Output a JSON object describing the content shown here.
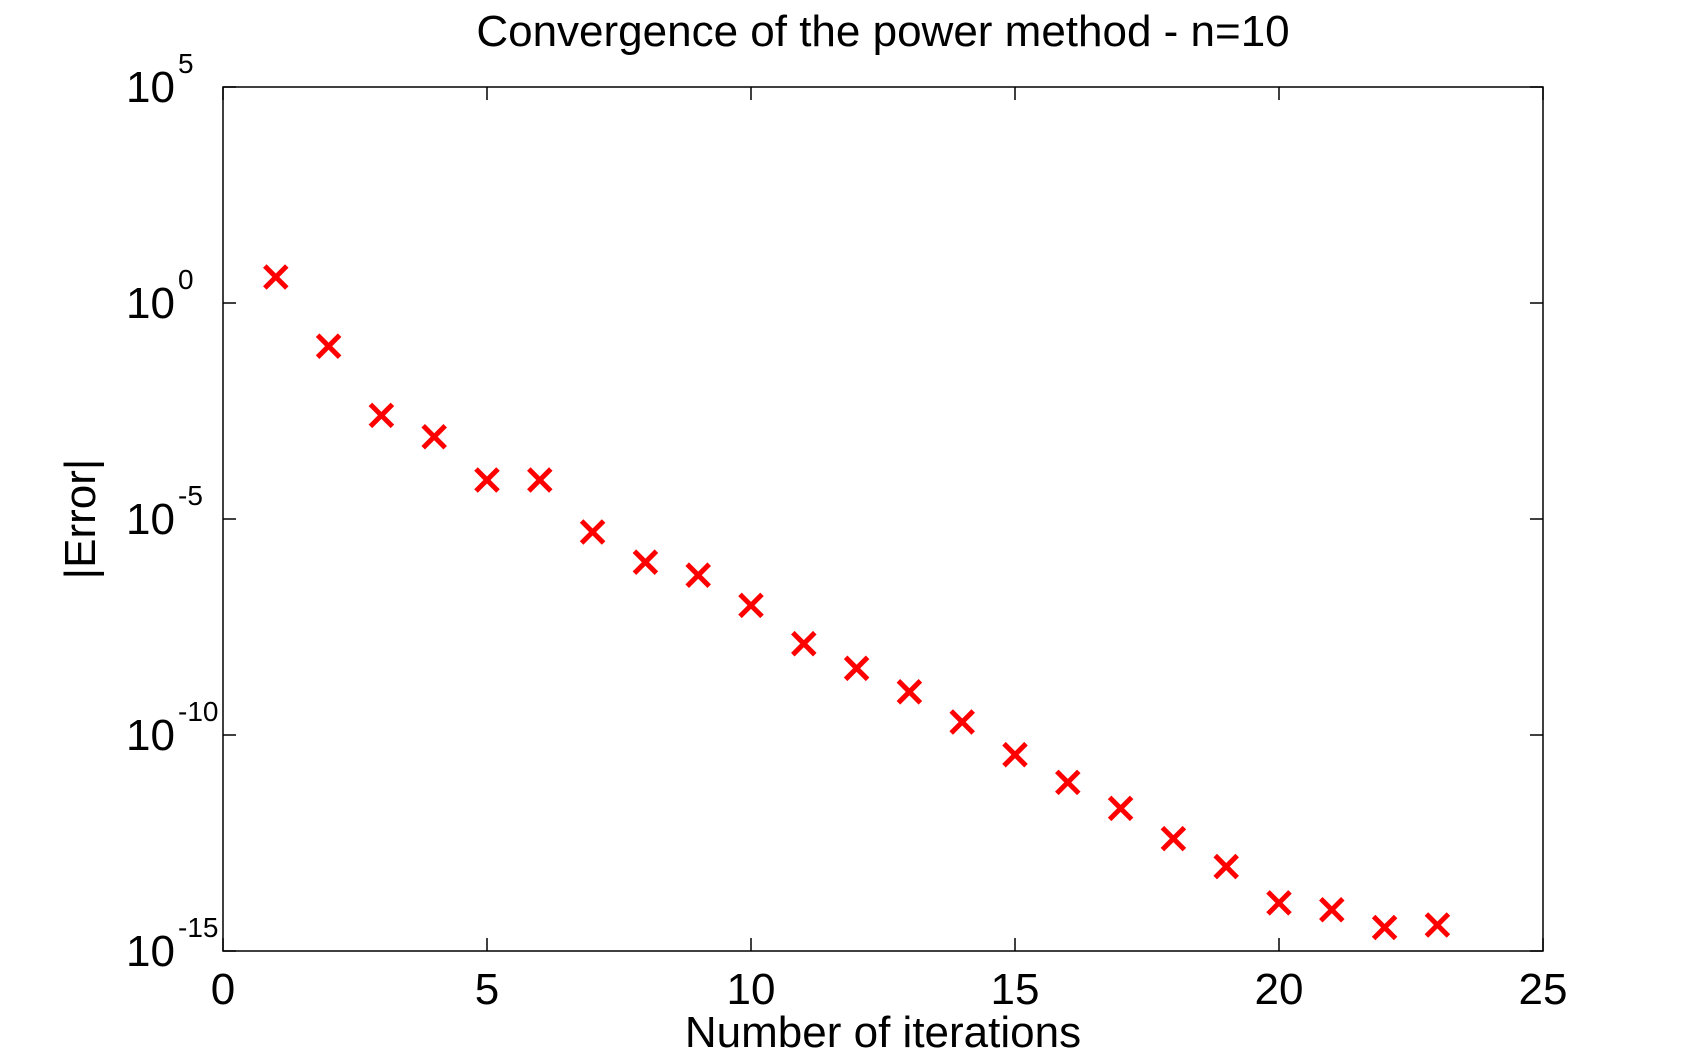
{
  "chart_data": {
    "type": "scatter",
    "title": "Convergence of the power method - n=10",
    "xlabel": "Number of iterations",
    "ylabel": "|Error|",
    "xlim": [
      0,
      25
    ],
    "ylim": [
      1e-15,
      100000
    ],
    "yscale": "log",
    "grid": false,
    "legend": "none",
    "x_ticks": [
      0,
      5,
      10,
      15,
      20,
      25
    ],
    "x_tick_labels": [
      "0",
      "5",
      "10",
      "15",
      "20",
      "25"
    ],
    "y_ticks": [
      {
        "value": 1e-15,
        "base": "10",
        "exp": "-15"
      },
      {
        "value": 1e-10,
        "base": "10",
        "exp": "-10"
      },
      {
        "value": 1e-05,
        "base": "10",
        "exp": "-5"
      },
      {
        "value": 1,
        "base": "10",
        "exp": "0"
      },
      {
        "value": 100000,
        "base": "10",
        "exp": "5"
      }
    ],
    "marker": "x",
    "marker_color": "#ff0000",
    "axis_color": "#000000",
    "series": [
      {
        "x": [
          1,
          2,
          3,
          4,
          5,
          6,
          7,
          8,
          9,
          10,
          11,
          12,
          13,
          14,
          15,
          16,
          17,
          18,
          19,
          20,
          21,
          22,
          23
        ],
        "y": [
          4.0,
          0.1,
          0.0025,
          0.0008,
          8e-05,
          8e-05,
          5e-06,
          1e-06,
          5e-07,
          1e-07,
          1.3e-08,
          3.5e-09,
          1e-09,
          2e-10,
          3.5e-11,
          8e-12,
          2e-12,
          4e-13,
          9e-14,
          1.3e-14,
          9e-15,
          3.5e-15,
          4e-15
        ]
      }
    ]
  }
}
